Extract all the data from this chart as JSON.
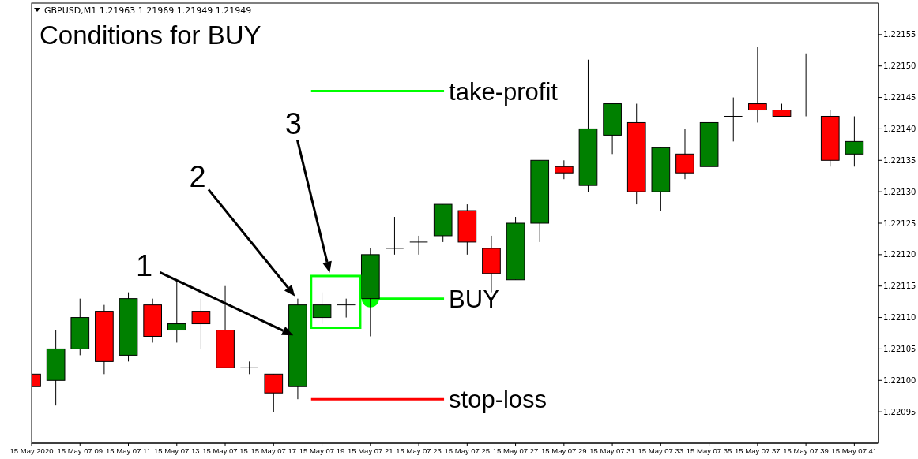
{
  "chart_data": {
    "type": "candlestick",
    "title": "Conditions for BUY",
    "subtitle": "GBPUSD,M1  1.21963 1.21969 1.21949 1.21949",
    "x": [
      "2020-05-15T07:07",
      "2020-05-15T07:08",
      "2020-05-15T07:09",
      "2020-05-15T07:10",
      "2020-05-15T07:11",
      "2020-05-15T07:12",
      "2020-05-15T07:13",
      "2020-05-15T07:14",
      "2020-05-15T07:15",
      "2020-05-15T07:16",
      "2020-05-15T07:17",
      "2020-05-15T07:18",
      "2020-05-15T07:19",
      "2020-05-15T07:20",
      "2020-05-15T07:21",
      "2020-05-15T07:22",
      "2020-05-15T07:23",
      "2020-05-15T07:24",
      "2020-05-15T07:25",
      "2020-05-15T07:26",
      "2020-05-15T07:27",
      "2020-05-15T07:28",
      "2020-05-15T07:29",
      "2020-05-15T07:30",
      "2020-05-15T07:31",
      "2020-05-15T07:32",
      "2020-05-15T07:33",
      "2020-05-15T07:34",
      "2020-05-15T07:35",
      "2020-05-15T07:36",
      "2020-05-15T07:37",
      "2020-05-15T07:38",
      "2020-05-15T07:39",
      "2020-05-15T07:40",
      "2020-05-15T07:41"
    ],
    "ohlc": [
      [
        1.22101,
        1.22102,
        1.22096,
        1.22099
      ],
      [
        1.221,
        1.22108,
        1.22096,
        1.22105
      ],
      [
        1.22105,
        1.22113,
        1.22104,
        1.2211
      ],
      [
        1.22111,
        1.22112,
        1.22101,
        1.22103
      ],
      [
        1.22104,
        1.22114,
        1.22103,
        1.22113
      ],
      [
        1.22112,
        1.22113,
        1.22106,
        1.22107
      ],
      [
        1.22108,
        1.22116,
        1.22106,
        1.22109
      ],
      [
        1.22111,
        1.22113,
        1.22105,
        1.22109
      ],
      [
        1.22108,
        1.22115,
        1.22102,
        1.22102
      ],
      [
        1.22102,
        1.22103,
        1.22101,
        1.22102
      ],
      [
        1.22101,
        1.22101,
        1.22095,
        1.22098
      ],
      [
        1.22099,
        1.22113,
        1.22097,
        1.22112
      ],
      [
        1.2211,
        1.22114,
        1.22109,
        1.22112
      ],
      [
        1.22112,
        1.22113,
        1.2211,
        1.22112
      ],
      [
        1.22113,
        1.22121,
        1.22107,
        1.2212
      ],
      [
        1.22121,
        1.22126,
        1.2212,
        1.22121
      ],
      [
        1.22122,
        1.22123,
        1.2212,
        1.22122
      ],
      [
        1.22123,
        1.22128,
        1.22122,
        1.22128
      ],
      [
        1.22127,
        1.22128,
        1.2212,
        1.22122
      ],
      [
        1.22121,
        1.22123,
        1.22114,
        1.22117
      ],
      [
        1.22116,
        1.22126,
        1.22116,
        1.22125
      ],
      [
        1.22125,
        1.22135,
        1.22122,
        1.22135
      ],
      [
        1.22134,
        1.22135,
        1.22132,
        1.22133
      ],
      [
        1.22131,
        1.22151,
        1.2213,
        1.2214
      ],
      [
        1.22139,
        1.22144,
        1.22136,
        1.22144
      ],
      [
        1.22141,
        1.22144,
        1.22128,
        1.2213
      ],
      [
        1.2213,
        1.22137,
        1.22127,
        1.22137
      ],
      [
        1.22136,
        1.2214,
        1.22132,
        1.22133
      ],
      [
        1.22134,
        1.22141,
        1.22134,
        1.22141
      ],
      [
        1.22142,
        1.22145,
        1.22138,
        1.22142
      ],
      [
        1.22144,
        1.22153,
        1.22141,
        1.22143
      ],
      [
        1.22143,
        1.22144,
        1.22142,
        1.22142
      ],
      [
        1.22143,
        1.22152,
        1.22142,
        1.22143
      ],
      [
        1.22142,
        1.22143,
        1.22134,
        1.22135
      ],
      [
        1.22136,
        1.22142,
        1.22134,
        1.22138
      ]
    ],
    "colors": [
      "#ff0000",
      "#008000",
      "#008000",
      "#ff0000",
      "#008000",
      "#ff0000",
      "#008000",
      "#ff0000",
      "#ff0000",
      "#000000",
      "#ff0000",
      "#008000",
      "#008000",
      "#000000",
      "#008000",
      "#000000",
      "#000000",
      "#008000",
      "#ff0000",
      "#ff0000",
      "#008000",
      "#008000",
      "#ff0000",
      "#008000",
      "#008000",
      "#ff0000",
      "#008000",
      "#ff0000",
      "#008000",
      "#000000",
      "#ff0000",
      "#ff0000",
      "#000000",
      "#ff0000",
      "#008000"
    ],
    "xlim": [
      "2020-05-15T07:07",
      "2020-05-15T07:42"
    ],
    "xticks": [
      {
        "value": "2020-05-15T07:07",
        "label": "15 May 2020"
      },
      {
        "value": "2020-05-15T07:09",
        "label": "15 May 07:09"
      },
      {
        "value": "2020-05-15T07:11",
        "label": "15 May 07:11"
      },
      {
        "value": "2020-05-15T07:13",
        "label": "15 May 07:13"
      },
      {
        "value": "2020-05-15T07:15",
        "label": "15 May 07:15"
      },
      {
        "value": "2020-05-15T07:17",
        "label": "15 May 07:17"
      },
      {
        "value": "2020-05-15T07:19",
        "label": "15 May 07:19"
      },
      {
        "value": "2020-05-15T07:21",
        "label": "15 May 07:21"
      },
      {
        "value": "2020-05-15T07:23",
        "label": "15 May 07:23"
      },
      {
        "value": "2020-05-15T07:25",
        "label": "15 May 07:25"
      },
      {
        "value": "2020-05-15T07:27",
        "label": "15 May 07:27"
      },
      {
        "value": "2020-05-15T07:29",
        "label": "15 May 07:29"
      },
      {
        "value": "2020-05-15T07:31",
        "label": "15 May 07:31"
      },
      {
        "value": "2020-05-15T07:33",
        "label": "15 May 07:33"
      },
      {
        "value": "2020-05-15T07:35",
        "label": "15 May 07:35"
      },
      {
        "value": "2020-05-15T07:37",
        "label": "15 May 07:37"
      },
      {
        "value": "2020-05-15T07:39",
        "label": "15 May 07:39"
      },
      {
        "value": "2020-05-15T07:41",
        "label": "15 May 07:41"
      }
    ],
    "ylim": [
      1.2209,
      1.2216
    ],
    "yticks": [
      {
        "value": 1.22095,
        "label": "1.22095"
      },
      {
        "value": 1.221,
        "label": "1.22100"
      },
      {
        "value": 1.22105,
        "label": "1.22105"
      },
      {
        "value": 1.2211,
        "label": "1.22110"
      },
      {
        "value": 1.22115,
        "label": "1.22115"
      },
      {
        "value": 1.2212,
        "label": "1.22120"
      },
      {
        "value": 1.22125,
        "label": "1.22125"
      },
      {
        "value": 1.2213,
        "label": "1.22130"
      },
      {
        "value": 1.22135,
        "label": "1.22135"
      },
      {
        "value": 1.2214,
        "label": "1.22140"
      },
      {
        "value": 1.22145,
        "label": "1.22145"
      },
      {
        "value": 1.2215,
        "label": "1.22150"
      },
      {
        "value": 1.22155,
        "label": "1.22155"
      }
    ],
    "ref_lines": [
      {
        "axis": "y",
        "value": 1.22146,
        "label": "take-profit",
        "color": "#00ff00"
      },
      {
        "axis": "y",
        "value": 1.22097,
        "label": "stop-loss",
        "color": "#ff0000"
      }
    ],
    "annotations": [
      {
        "text": "BUY",
        "x": "2020-05-15T07:21",
        "y": 1.22113
      },
      "1",
      "2",
      "3"
    ],
    "grid": false
  }
}
